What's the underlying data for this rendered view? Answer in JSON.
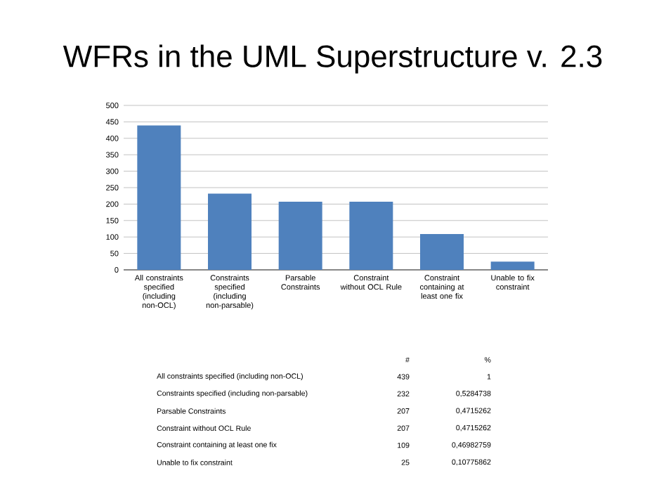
{
  "chart_data": {
    "type": "bar",
    "title": "WFRs in the UML Superstructure v. 2.3",
    "categories": [
      "All constraints specified (including non-OCL)",
      "Constraints specified (including non-parsable)",
      "Parsable Constraints",
      "Constraint without OCL Rule",
      "Constraint containing at least one fix",
      "Unable to fix constraint"
    ],
    "values": [
      439,
      232,
      207,
      207,
      109,
      25
    ],
    "color": "#4f81bd",
    "ylim": [
      0,
      500
    ],
    "yticks": [
      0,
      50,
      100,
      150,
      200,
      250,
      300,
      350,
      400,
      450,
      500
    ],
    "grid": "y",
    "annotations": [
      "#",
      "%",
      "All constraints specified (including non-OCL)",
      "439",
      "1",
      "Constraints specified (including non-parsable)",
      "232",
      "0,5284738",
      "Parsable Constraints",
      "207",
      "0,4715262",
      "Constraint without OCL Rule",
      "207",
      "0,4715262",
      "Constraint containing at least one fix",
      "109",
      "0,46982759",
      "Unable to fix constraint",
      "25",
      "0,10775862"
    ]
  }
}
